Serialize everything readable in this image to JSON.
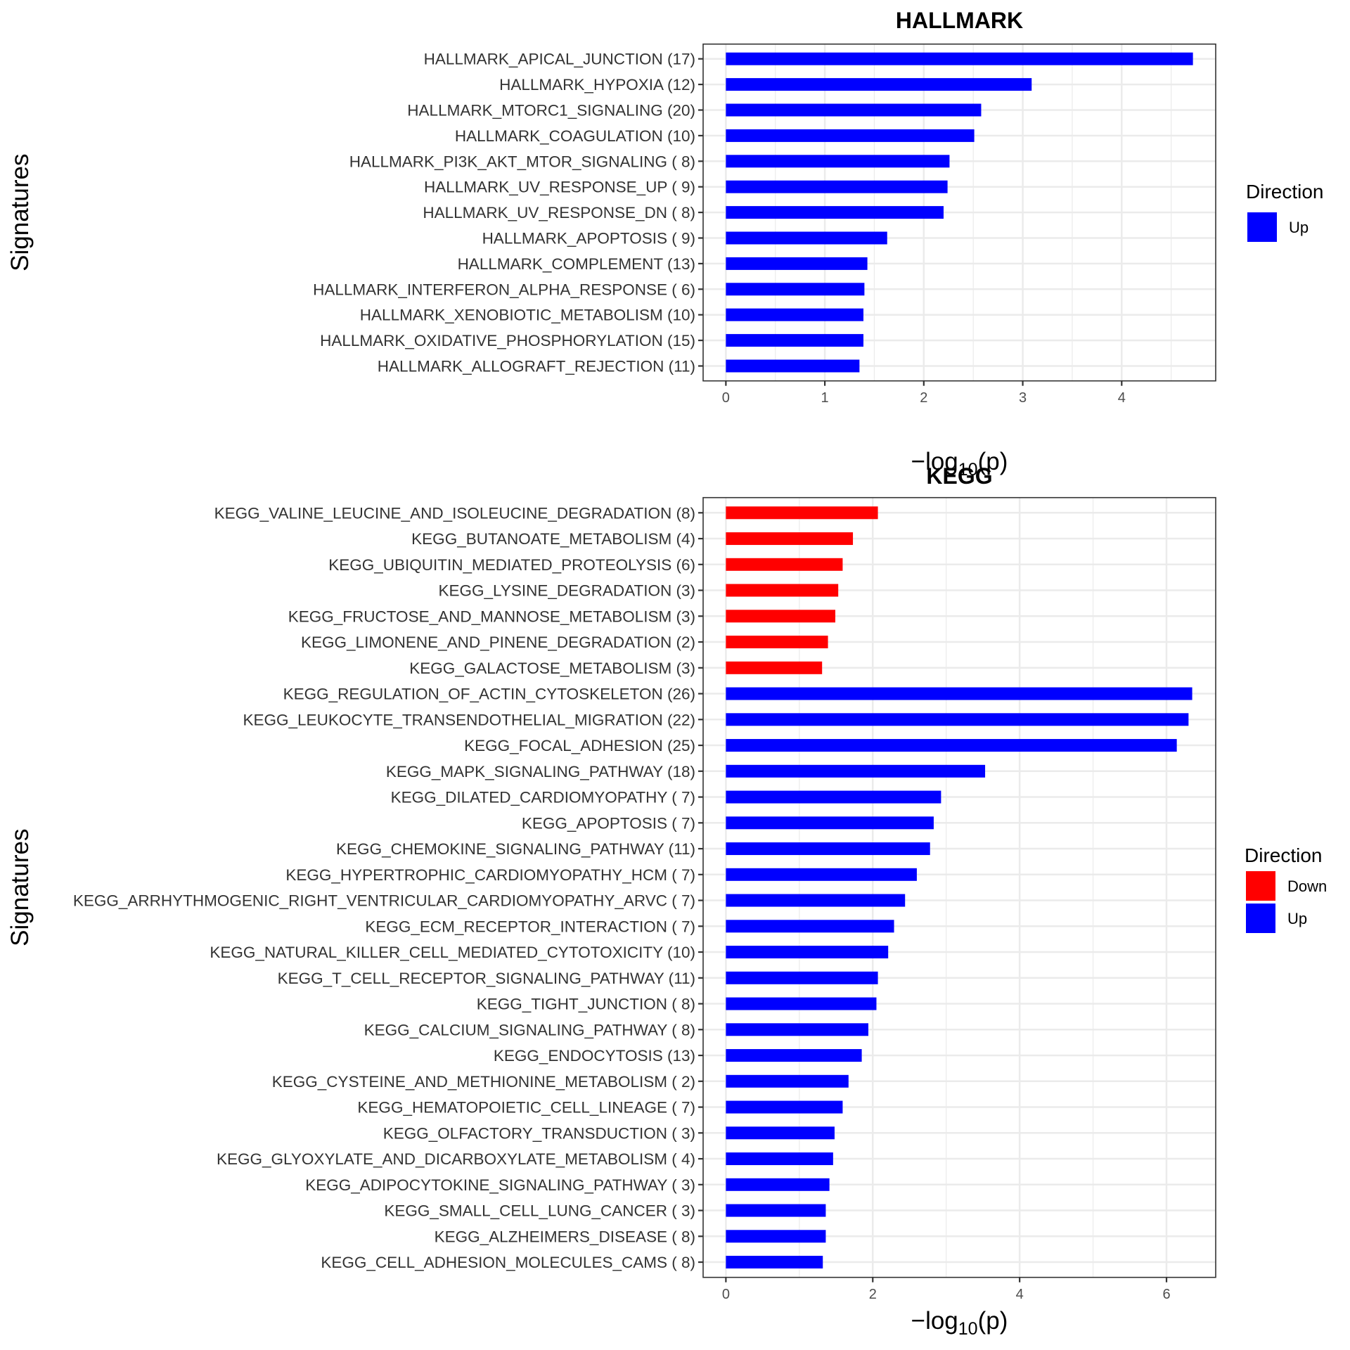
{
  "chart_data": [
    {
      "type": "bar",
      "orientation": "horizontal",
      "title": "HALLMARK",
      "xlabel": "-log10(p)",
      "ylabel": "Signatures",
      "xlim": [
        -0.23,
        4.95
      ],
      "xticks": [
        0,
        1,
        2,
        3,
        4
      ],
      "grid": true,
      "legend": {
        "title": "Direction",
        "position": "right",
        "entries": [
          {
            "label": "Up",
            "color": "#0000FF"
          }
        ]
      },
      "categories": [
        "HALLMARK_APICAL_JUNCTION (17)",
        "HALLMARK_HYPOXIA (12)",
        "HALLMARK_MTORC1_SIGNALING (20)",
        "HALLMARK_COAGULATION (10)",
        "HALLMARK_PI3K_AKT_MTOR_SIGNALING ( 8)",
        "HALLMARK_UV_RESPONSE_UP ( 9)",
        "HALLMARK_UV_RESPONSE_DN ( 8)",
        "HALLMARK_APOPTOSIS ( 9)",
        "HALLMARK_COMPLEMENT (13)",
        "HALLMARK_INTERFERON_ALPHA_RESPONSE ( 6)",
        "HALLMARK_XENOBIOTIC_METABOLISM (10)",
        "HALLMARK_OXIDATIVE_PHOSPHORYLATION (15)",
        "HALLMARK_ALLOGRAFT_REJECTION (11)"
      ],
      "values": [
        4.72,
        3.09,
        2.58,
        2.51,
        2.26,
        2.24,
        2.2,
        1.63,
        1.43,
        1.4,
        1.39,
        1.39,
        1.35
      ],
      "direction": [
        "Up",
        "Up",
        "Up",
        "Up",
        "Up",
        "Up",
        "Up",
        "Up",
        "Up",
        "Up",
        "Up",
        "Up",
        "Up"
      ]
    },
    {
      "type": "bar",
      "orientation": "horizontal",
      "title": "KEGG",
      "xlabel": "-log10(p)",
      "ylabel": "Signatures",
      "xlim": [
        -0.31,
        6.67
      ],
      "xticks": [
        0,
        2,
        4,
        6
      ],
      "grid": true,
      "legend": {
        "title": "Direction",
        "position": "right",
        "entries": [
          {
            "label": "Down",
            "color": "#FF0000"
          },
          {
            "label": "Up",
            "color": "#0000FF"
          }
        ]
      },
      "categories": [
        "KEGG_VALINE_LEUCINE_AND_ISOLEUCINE_DEGRADATION (8)",
        "KEGG_BUTANOATE_METABOLISM (4)",
        "KEGG_UBIQUITIN_MEDIATED_PROTEOLYSIS (6)",
        "KEGG_LYSINE_DEGRADATION (3)",
        "KEGG_FRUCTOSE_AND_MANNOSE_METABOLISM (3)",
        "KEGG_LIMONENE_AND_PINENE_DEGRADATION (2)",
        "KEGG_GALACTOSE_METABOLISM (3)",
        "KEGG_REGULATION_OF_ACTIN_CYTOSKELETON (26)",
        "KEGG_LEUKOCYTE_TRANSENDOTHELIAL_MIGRATION (22)",
        "KEGG_FOCAL_ADHESION (25)",
        "KEGG_MAPK_SIGNALING_PATHWAY (18)",
        "KEGG_DILATED_CARDIOMYOPATHY ( 7)",
        "KEGG_APOPTOSIS ( 7)",
        "KEGG_CHEMOKINE_SIGNALING_PATHWAY (11)",
        "KEGG_HYPERTROPHIC_CARDIOMYOPATHY_HCM ( 7)",
        "KEGG_ARRHYTHMOGENIC_RIGHT_VENTRICULAR_CARDIOMYOPATHY_ARVC ( 7)",
        "KEGG_ECM_RECEPTOR_INTERACTION ( 7)",
        "KEGG_NATURAL_KILLER_CELL_MEDIATED_CYTOTOXICITY (10)",
        "KEGG_T_CELL_RECEPTOR_SIGNALING_PATHWAY (11)",
        "KEGG_TIGHT_JUNCTION ( 8)",
        "KEGG_CALCIUM_SIGNALING_PATHWAY ( 8)",
        "KEGG_ENDOCYTOSIS (13)",
        "KEGG_CYSTEINE_AND_METHIONINE_METABOLISM ( 2)",
        "KEGG_HEMATOPOIETIC_CELL_LINEAGE ( 7)",
        "KEGG_OLFACTORY_TRANSDUCTION ( 3)",
        "KEGG_GLYOXYLATE_AND_DICARBOXYLATE_METABOLISM ( 4)",
        "KEGG_ADIPOCYTOKINE_SIGNALING_PATHWAY ( 3)",
        "KEGG_SMALL_CELL_LUNG_CANCER ( 3)",
        "KEGG_ALZHEIMERS_DISEASE ( 8)",
        "KEGG_CELL_ADHESION_MOLECULES_CAMS ( 8)"
      ],
      "values": [
        2.07,
        1.73,
        1.59,
        1.53,
        1.49,
        1.39,
        1.31,
        6.35,
        6.3,
        6.14,
        3.53,
        2.93,
        2.83,
        2.78,
        2.6,
        2.44,
        2.29,
        2.21,
        2.07,
        2.05,
        1.94,
        1.85,
        1.67,
        1.59,
        1.48,
        1.46,
        1.41,
        1.36,
        1.36,
        1.32
      ],
      "direction": [
        "Down",
        "Down",
        "Down",
        "Down",
        "Down",
        "Down",
        "Down",
        "Up",
        "Up",
        "Up",
        "Up",
        "Up",
        "Up",
        "Up",
        "Up",
        "Up",
        "Up",
        "Up",
        "Up",
        "Up",
        "Up",
        "Up",
        "Up",
        "Up",
        "Up",
        "Up",
        "Up",
        "Up",
        "Up",
        "Up"
      ]
    }
  ],
  "colors": {
    "Up": "#0000FF",
    "Down": "#FF0000"
  },
  "axis_title_parts": {
    "minus": "−",
    "log": "log",
    "sub": "10",
    "arg": "(p)"
  }
}
